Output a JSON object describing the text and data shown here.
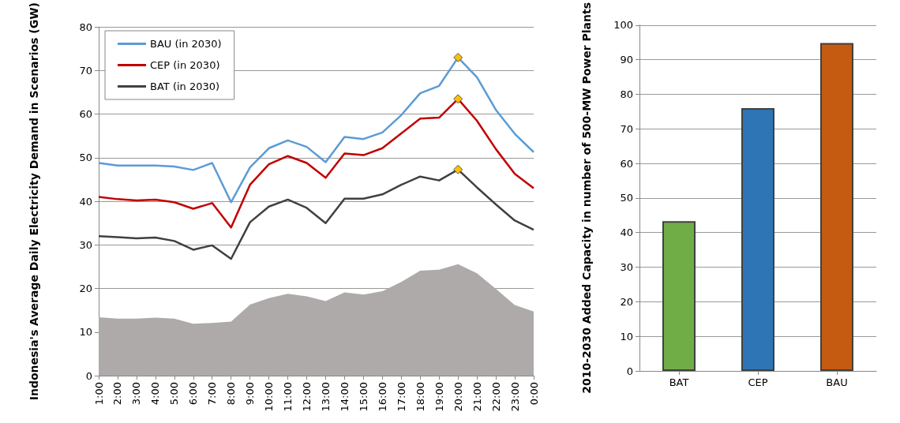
{
  "chart_data": [
    {
      "type": "line",
      "ylabel": "Indonesia's Average Daily Electricity Demand in Scenarios (GW)",
      "categories": [
        "1:00",
        "2:00",
        "3:00",
        "4:00",
        "5:00",
        "6:00",
        "7:00",
        "8:00",
        "9:00",
        "10:00",
        "11:00",
        "12:00",
        "13:00",
        "14:00",
        "15:00",
        "16:00",
        "17:00",
        "18:00",
        "19:00",
        "20:00",
        "21:00",
        "22:00",
        "23:00",
        "0:00"
      ],
      "series": [
        {
          "type": "area",
          "color": "#aeaaaa",
          "values": [
            13.4,
            13.1,
            13.1,
            13.3,
            13.1,
            11.9,
            12.1,
            12.4,
            16.3,
            17.8,
            18.8,
            18.2,
            17.1,
            19.1,
            18.6,
            19.4,
            21.5,
            24.1,
            24.3,
            25.6,
            23.5,
            19.9,
            16.2,
            14.7
          ]
        },
        {
          "name": "BAU (in 2030)",
          "color": "#5b9bd5",
          "values": [
            48.8,
            48.2,
            48.2,
            48.2,
            48,
            47.2,
            48.8,
            39.8,
            47.8,
            52.2,
            54,
            52.5,
            49,
            54.8,
            54.3,
            55.8,
            59.8,
            64.8,
            66.5,
            73,
            68.5,
            61,
            55.5,
            51.3
          ]
        },
        {
          "name": "CEP (in 2030)",
          "color": "#c00000",
          "values": [
            41,
            40.5,
            40.2,
            40.4,
            39.8,
            38.3,
            39.6,
            34,
            43.8,
            48.5,
            50.4,
            48.8,
            45.4,
            51,
            50.6,
            52.2,
            55.6,
            59,
            59.2,
            63.5,
            58.5,
            52,
            46.3,
            43
          ]
        },
        {
          "name": "BAT (in 2030)",
          "color": "#404040",
          "values": [
            32,
            31.8,
            31.5,
            31.7,
            30.9,
            28.9,
            29.9,
            26.8,
            35.2,
            38.8,
            40.4,
            38.5,
            35,
            40.6,
            40.6,
            41.6,
            43.8,
            45.7,
            44.8,
            47.3,
            43.2,
            39.3,
            35.6,
            33.5
          ]
        },
        {
          "type": "scatter",
          "marker": "diamond",
          "color": "#ffc000",
          "x": [
            "20:00",
            "20:00",
            "20:00"
          ],
          "values": [
            73,
            63.5,
            47.3
          ]
        }
      ],
      "ylim": [
        0,
        80
      ],
      "yticks": [
        0,
        10,
        20,
        30,
        40,
        50,
        60,
        70,
        80
      ],
      "grid": "y",
      "legend": "top left",
      "marker": "none",
      "line_style": "solid"
    },
    {
      "type": "bar",
      "ylabel": "2010-2030 Added Capacity in number of 500-MW Power Plants",
      "categories": [
        "BAT",
        "CEP",
        "BAU"
      ],
      "values": [
        43.3,
        76,
        94.8
      ],
      "colors": [
        "#70ad47",
        "#2e75b6",
        "#c55a11"
      ],
      "ylim": [
        0,
        100
      ],
      "yticks": [
        0,
        10,
        20,
        30,
        40,
        50,
        60,
        70,
        80,
        90,
        100
      ],
      "grid": "y",
      "legend": false
    }
  ]
}
